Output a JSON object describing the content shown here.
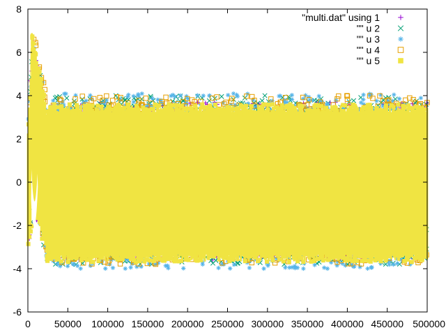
{
  "chart_data": {
    "type": "scatter",
    "title": "",
    "xlabel": "",
    "ylabel": "",
    "xlim": [
      0,
      500000
    ],
    "ylim": [
      -6,
      8
    ],
    "xticks": [
      0,
      50000,
      100000,
      150000,
      200000,
      250000,
      300000,
      350000,
      400000,
      450000,
      500000
    ],
    "yticks": [
      -6,
      -4,
      -2,
      0,
      2,
      4,
      6,
      8
    ],
    "xtick_labels": [
      "0",
      "50000",
      "100000",
      "150000",
      "200000",
      "250000",
      "300000",
      "350000",
      "400000",
      "450000",
      "500000"
    ],
    "ytick_labels": [
      "-6",
      "-4",
      "-2",
      "0",
      "2",
      "4",
      "6",
      "8"
    ],
    "grid": false,
    "legend_position": "top-right",
    "series": [
      {
        "name": "\"multi.dat\" using 1",
        "marker": "plus",
        "color": "#9400d3",
        "band": {
          "low": -3.6,
          "high": 3.7
        },
        "peak": {
          "x": 10000,
          "y": 7.1
        }
      },
      {
        "name": "\"\" u 2",
        "marker": "cross",
        "color": "#009e73",
        "band": {
          "low": -3.8,
          "high": 4.0
        },
        "peak": {
          "x": 10000,
          "y": 7.0
        }
      },
      {
        "name": "\"\" u 3",
        "marker": "star",
        "color": "#56b4e9",
        "band": {
          "low": -4.0,
          "high": 4.1
        },
        "peak": {
          "x": 10000,
          "y": 7.0
        }
      },
      {
        "name": "\"\" u 4",
        "marker": "square-open",
        "color": "#e69f00",
        "band": {
          "low": -3.8,
          "high": 4.0
        },
        "peak": {
          "x": 10000,
          "y": 7.4
        }
      },
      {
        "name": "\"\" u 5",
        "marker": "square-filled",
        "color": "#f0e442",
        "band": {
          "low": -3.7,
          "high": 3.6
        },
        "peak": {
          "x": 10000,
          "y": 7.0
        }
      }
    ]
  }
}
